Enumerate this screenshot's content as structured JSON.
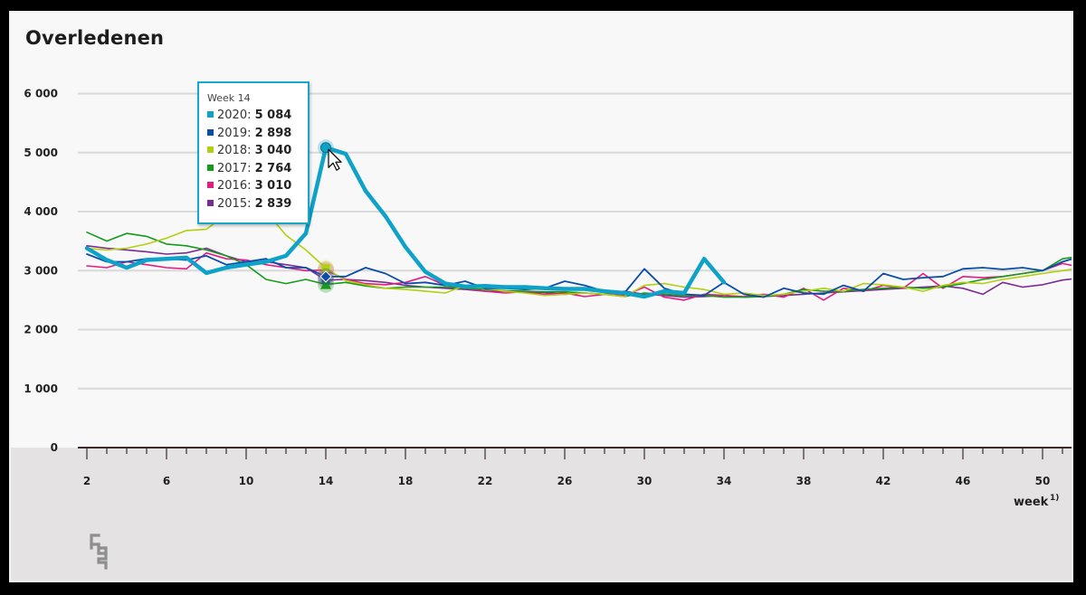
{
  "title": "Overledenen",
  "tooltip": {
    "week_label": "Week 14",
    "rows": [
      {
        "label": "2020:",
        "value": "5 084",
        "color": "#0ea2c8"
      },
      {
        "label": "2019:",
        "value": "2 898",
        "color": "#0a4ea8"
      },
      {
        "label": "2018:",
        "value": "3 040",
        "color": "#b3cf0f"
      },
      {
        "label": "2017:",
        "value": "2 764",
        "color": "#169a1c"
      },
      {
        "label": "2016:",
        "value": "3 010",
        "color": "#e31c82"
      },
      {
        "label": "2015:",
        "value": "2 839",
        "color": "#7b2c93"
      }
    ]
  },
  "chart_data": {
    "type": "line",
    "title": "Overledenen",
    "xlabel": "week",
    "xlabel_superscript": "1)",
    "ylabel": "",
    "ylim": [
      0,
      6000
    ],
    "xlim": [
      2,
      52
    ],
    "y_ticks": [
      "0",
      "1 000",
      "2 000",
      "3 000",
      "4 000",
      "5 000",
      "6 000"
    ],
    "y_tick_values": [
      0,
      1000,
      2000,
      3000,
      4000,
      5000,
      6000
    ],
    "x_ticks": [
      "2",
      "6",
      "10",
      "14",
      "18",
      "22",
      "26",
      "30",
      "34",
      "38",
      "42",
      "46",
      "50"
    ],
    "x_tick_values": [
      2,
      6,
      10,
      14,
      18,
      22,
      26,
      30,
      34,
      38,
      42,
      46,
      50
    ],
    "grid": true,
    "highlight_week": 14,
    "series": [
      {
        "name": "2015",
        "color": "#7b2c93",
        "width": 1.6,
        "x": [
          2,
          3,
          4,
          5,
          6,
          7,
          8,
          9,
          10,
          11,
          12,
          13,
          14,
          15,
          16,
          17,
          18,
          19,
          20,
          21,
          22,
          23,
          24,
          25,
          26,
          27,
          28,
          29,
          30,
          31,
          32,
          33,
          34,
          35,
          36,
          37,
          38,
          39,
          40,
          41,
          42,
          43,
          44,
          45,
          46,
          47,
          48,
          49,
          50,
          51,
          52
        ],
        "values": [
          3420,
          3380,
          3350,
          3320,
          3280,
          3300,
          3380,
          3250,
          3150,
          3150,
          3100,
          3050,
          2839,
          2850,
          2830,
          2800,
          2750,
          2720,
          2700,
          2680,
          2650,
          2650,
          2640,
          2630,
          2600,
          2620,
          2600,
          2650,
          2600,
          2580,
          2550,
          2560,
          2580,
          2550,
          2560,
          2580,
          2600,
          2620,
          2640,
          2660,
          2680,
          2700,
          2720,
          2740,
          2700,
          2600,
          2800,
          2720,
          2760,
          2840,
          2880
        ]
      },
      {
        "name": "2016",
        "color": "#e31c82",
        "width": 1.6,
        "x": [
          2,
          3,
          4,
          5,
          6,
          7,
          8,
          9,
          10,
          11,
          12,
          13,
          14,
          15,
          16,
          17,
          18,
          19,
          20,
          21,
          22,
          23,
          24,
          25,
          26,
          27,
          28,
          29,
          30,
          31,
          32,
          33,
          34,
          35,
          36,
          37,
          38,
          39,
          40,
          41,
          42,
          43,
          44,
          45,
          46,
          47,
          48,
          49,
          50,
          51,
          52
        ],
        "values": [
          3080,
          3050,
          3150,
          3100,
          3050,
          3030,
          3300,
          3200,
          3180,
          3100,
          3050,
          3000,
          3010,
          2850,
          2780,
          2760,
          2800,
          2900,
          2750,
          2700,
          2650,
          2620,
          2640,
          2600,
          2620,
          2560,
          2600,
          2580,
          2720,
          2550,
          2500,
          2600,
          2580,
          2560,
          2600,
          2550,
          2700,
          2500,
          2700,
          2650,
          2750,
          2700,
          2950,
          2700,
          2900,
          2880,
          2900,
          2950,
          3000,
          3120,
          3050
        ]
      },
      {
        "name": "2017",
        "color": "#169a1c",
        "width": 1.6,
        "x": [
          2,
          3,
          4,
          5,
          6,
          7,
          8,
          9,
          10,
          11,
          12,
          13,
          14,
          15,
          16,
          17,
          18,
          19,
          20,
          21,
          22,
          23,
          24,
          25,
          26,
          27,
          28,
          29,
          30,
          31,
          32,
          33,
          34,
          35,
          36,
          37,
          38,
          39,
          40,
          41,
          42,
          43,
          44,
          45,
          46,
          47,
          48,
          49,
          50,
          51,
          52
        ],
        "values": [
          3650,
          3500,
          3630,
          3580,
          3450,
          3420,
          3350,
          3250,
          3100,
          2850,
          2780,
          2850,
          2764,
          2800,
          2740,
          2700,
          2720,
          2720,
          2720,
          2700,
          2680,
          2660,
          2650,
          2640,
          2640,
          2620,
          2600,
          2560,
          2620,
          2600,
          2580,
          2580,
          2550,
          2550,
          2560,
          2600,
          2680,
          2650,
          2650,
          2680,
          2700,
          2720,
          2700,
          2720,
          2780,
          2850,
          2900,
          2950,
          3000,
          3200,
          3250
        ]
      },
      {
        "name": "2018",
        "color": "#b3cf0f",
        "width": 1.6,
        "x": [
          2,
          3,
          4,
          5,
          6,
          7,
          8,
          9,
          10,
          11,
          12,
          13,
          14,
          15,
          16,
          17,
          18,
          19,
          20,
          21,
          22,
          23,
          24,
          25,
          26,
          27,
          28,
          29,
          30,
          31,
          32,
          33,
          34,
          35,
          36,
          37,
          38,
          39,
          40,
          41,
          42,
          43,
          44,
          45,
          46,
          47,
          48,
          49,
          50,
          51,
          52
        ],
        "values": [
          3380,
          3350,
          3380,
          3450,
          3550,
          3680,
          3700,
          3950,
          4050,
          4000,
          3600,
          3350,
          3040,
          2830,
          2760,
          2700,
          2680,
          2650,
          2620,
          2750,
          2700,
          2650,
          2620,
          2580,
          2600,
          2620,
          2600,
          2560,
          2750,
          2780,
          2720,
          2680,
          2600,
          2620,
          2580,
          2600,
          2650,
          2700,
          2650,
          2780,
          2760,
          2720,
          2650,
          2750,
          2800,
          2780,
          2850,
          2900,
          2950,
          3000,
          3050
        ]
      },
      {
        "name": "2019",
        "color": "#0a4ea8",
        "width": 1.8,
        "x": [
          2,
          3,
          4,
          5,
          6,
          7,
          8,
          9,
          10,
          11,
          12,
          13,
          14,
          15,
          16,
          17,
          18,
          19,
          20,
          21,
          22,
          23,
          24,
          25,
          26,
          27,
          28,
          29,
          30,
          31,
          32,
          33,
          34,
          35,
          36,
          37,
          38,
          39,
          40,
          41,
          42,
          43,
          44,
          45,
          46,
          47,
          48,
          49,
          50,
          51,
          52
        ],
        "values": [
          3280,
          3150,
          3150,
          3200,
          3200,
          3180,
          3250,
          3100,
          3150,
          3200,
          3050,
          3050,
          2898,
          2900,
          3050,
          2950,
          2780,
          2800,
          2750,
          2820,
          2700,
          2700,
          2680,
          2700,
          2820,
          2750,
          2650,
          2620,
          3030,
          2700,
          2600,
          2580,
          2800,
          2600,
          2550,
          2700,
          2620,
          2600,
          2750,
          2650,
          2950,
          2850,
          2880,
          2900,
          3030,
          3050,
          3020,
          3050,
          3000,
          3150,
          3250
        ]
      },
      {
        "name": "2020",
        "color": "#0ea2c8",
        "width": 4.5,
        "x": [
          2,
          3,
          4,
          5,
          6,
          7,
          8,
          9,
          10,
          11,
          12,
          13,
          14,
          15,
          16,
          17,
          18,
          19,
          20,
          21,
          22,
          23,
          24,
          25,
          26,
          27,
          28,
          29,
          30,
          31,
          32,
          33,
          34
        ],
        "values": [
          3380,
          3180,
          3050,
          3180,
          3200,
          3220,
          2960,
          3050,
          3100,
          3150,
          3250,
          3630,
          5084,
          4980,
          4350,
          3920,
          3400,
          2980,
          2780,
          2730,
          2740,
          2720,
          2720,
          2700,
          2690,
          2690,
          2650,
          2620,
          2560,
          2650,
          2620,
          3200,
          2800
        ]
      }
    ]
  }
}
